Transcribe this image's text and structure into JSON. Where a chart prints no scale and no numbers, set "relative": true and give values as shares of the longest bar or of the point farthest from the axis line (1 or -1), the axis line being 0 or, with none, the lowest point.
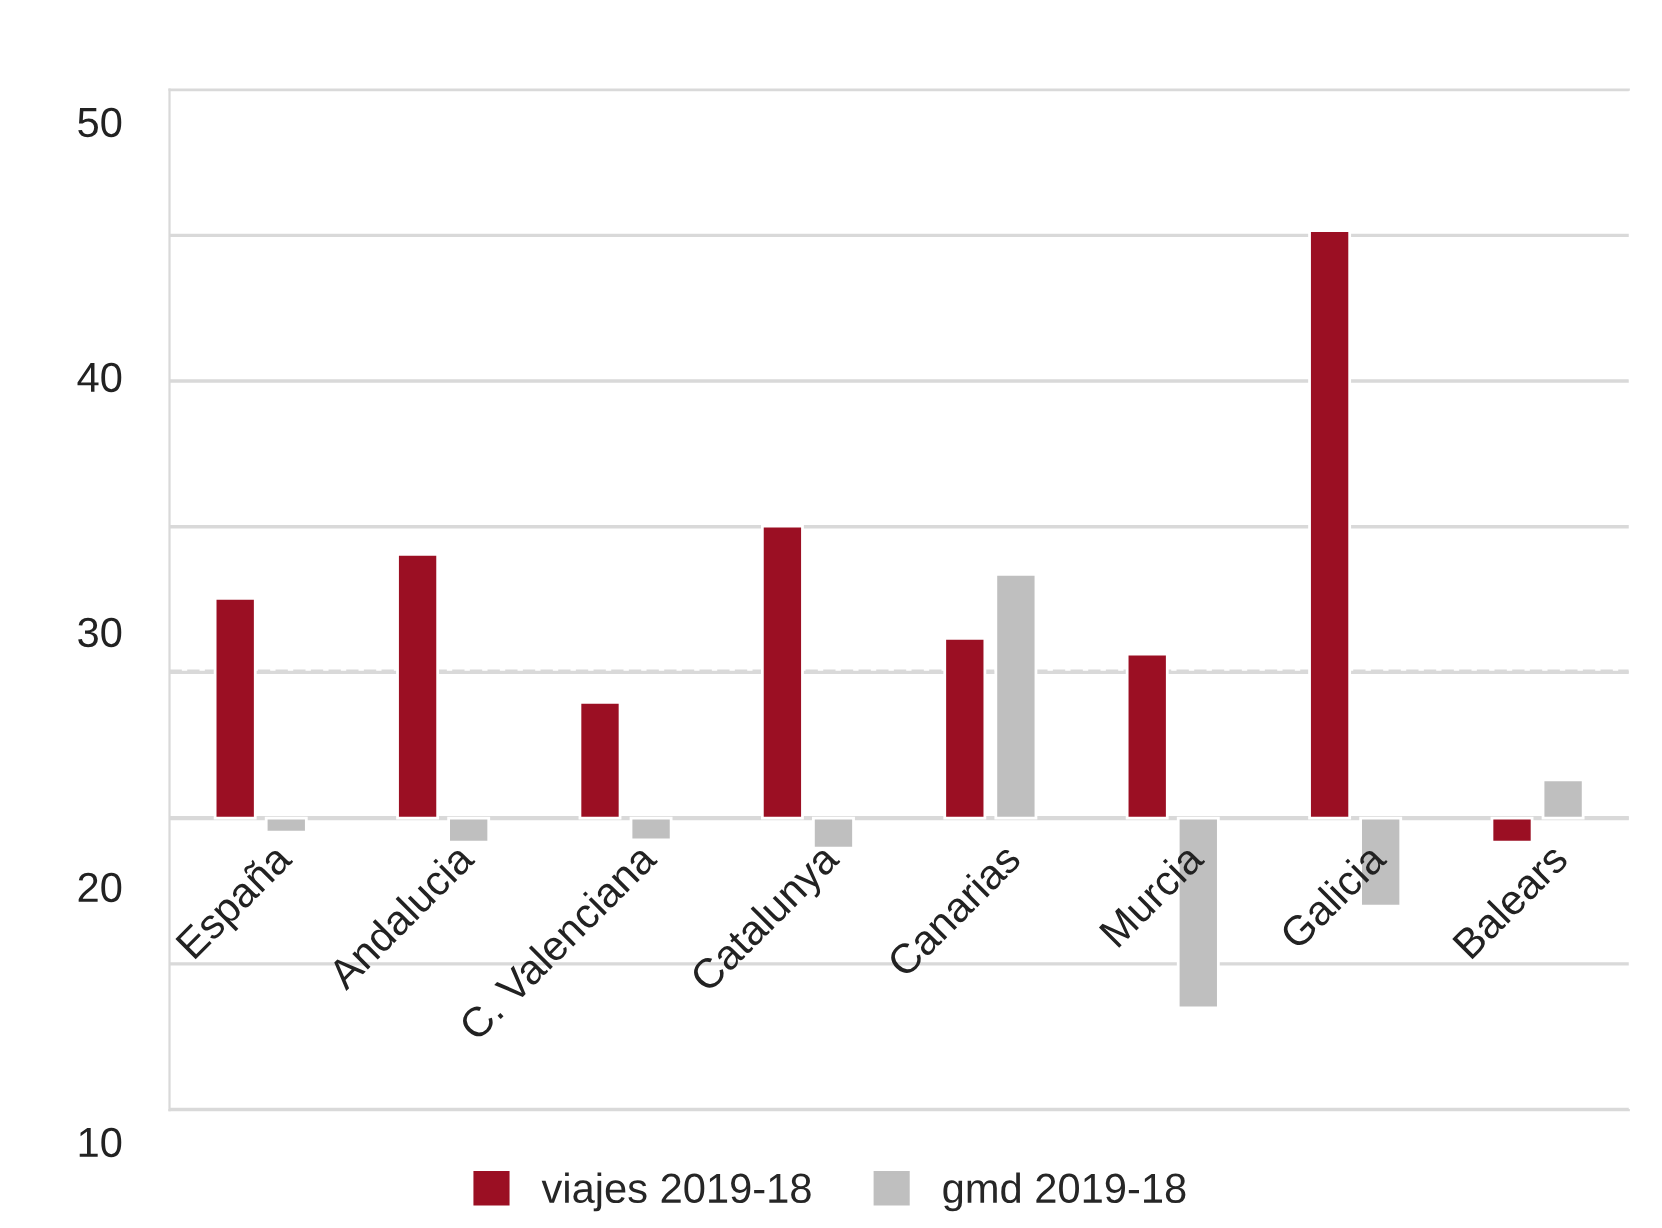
{
  "chart_data": {
    "type": "bar",
    "relative": true,
    "categories": [
      "España",
      "Andalucia",
      "C. Valenciana",
      "Catalunya",
      "Canarias",
      "Murcia",
      "Galicia",
      "Balears"
    ],
    "series": [
      {
        "name": "viajes 2019-18",
        "color": "#9b0f23",
        "values": [
          0.374,
          0.449,
          0.197,
          0.497,
          0.306,
          0.279,
          1,
          -0.041
        ]
      },
      {
        "name": "gmd 2019-18",
        "color": "#bfbfbf",
        "values": [
          -0.024,
          -0.041,
          -0.037,
          -0.051,
          0.415,
          -0.323,
          -0.15,
          0.065
        ]
      }
    ],
    "annotations": [
      "50",
      "40",
      "30",
      "20",
      "10"
    ],
    "ref_lines": [
      {
        "axis": "y",
        "value": 0.25,
        "label": null,
        "color": "#d9d9d9",
        "line_style": "dashed"
      }
    ],
    "grid": "y",
    "legend": "bottom"
  }
}
